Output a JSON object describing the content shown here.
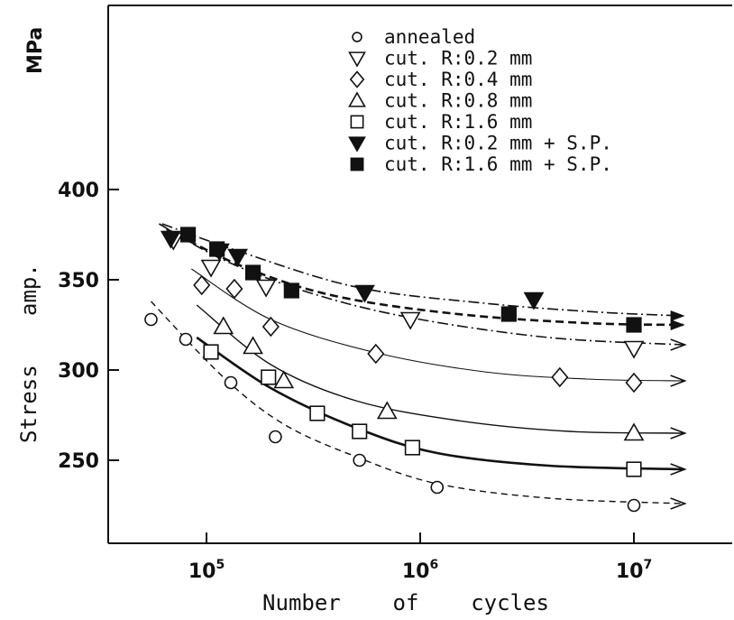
{
  "chart_data": {
    "type": "scatter",
    "title": "",
    "xlabel": "Number    of    cycles",
    "ylabel_text": "Stress",
    "ylabel_amp": "amp.",
    "ylabel_unit": "MPa",
    "x_scale": "log",
    "xlim": [
      30000,
      25000000
    ],
    "ylim": [
      205,
      430
    ],
    "grid": false,
    "legend_placement": "top-right",
    "x_ticks": [
      {
        "value": 100000,
        "base": "10",
        "exp": "5"
      },
      {
        "value": 1000000,
        "base": "10",
        "exp": "6"
      },
      {
        "value": 10000000,
        "base": "10",
        "exp": "7"
      }
    ],
    "y_ticks": [
      {
        "value": 250,
        "label": "250"
      },
      {
        "value": 300,
        "label": "300"
      },
      {
        "value": 350,
        "label": "350"
      },
      {
        "value": 400,
        "label": "400"
      }
    ],
    "series": [
      {
        "name": "annealed",
        "marker": "circle",
        "filled": false,
        "line": "dashed",
        "points": [
          [
            55000,
            328
          ],
          [
            80000,
            317
          ],
          [
            130000,
            293
          ],
          [
            210000,
            263
          ],
          [
            520000,
            250
          ],
          [
            1200000,
            235
          ],
          [
            10000000,
            225
          ]
        ],
        "curve": [
          [
            55000,
            338
          ],
          [
            120000,
            296
          ],
          [
            230000,
            270
          ],
          [
            500000,
            252
          ],
          [
            1200000,
            237
          ],
          [
            4000000,
            229
          ],
          [
            17000000,
            226
          ]
        ]
      },
      {
        "name": "cut. R:0.2 mm",
        "marker": "triangle-down",
        "filled": false,
        "line": "dashdot",
        "points": [
          [
            70000,
            372
          ],
          [
            105000,
            357
          ],
          [
            190000,
            346
          ],
          [
            900000,
            328
          ],
          [
            10000000,
            312
          ]
        ],
        "curve": [
          [
            60000,
            381
          ],
          [
            120000,
            361
          ],
          [
            300000,
            343
          ],
          [
            900000,
            329
          ],
          [
            4000000,
            318
          ],
          [
            17000000,
            314
          ]
        ]
      },
      {
        "name": "cut. R:0.4 mm",
        "marker": "diamond",
        "filled": false,
        "line": "solid-thin",
        "points": [
          [
            95000,
            347
          ],
          [
            135000,
            345
          ],
          [
            200000,
            324
          ],
          [
            620000,
            309
          ],
          [
            4500000,
            296
          ],
          [
            10000000,
            293
          ]
        ],
        "curve": [
          [
            85000,
            356
          ],
          [
            200000,
            328
          ],
          [
            600000,
            310
          ],
          [
            2000000,
            299
          ],
          [
            6000000,
            295
          ],
          [
            17000000,
            294
          ]
        ]
      },
      {
        "name": "cut. R:0.8 mm",
        "marker": "triangle-up",
        "filled": false,
        "line": "solid",
        "points": [
          [
            120000,
            324
          ],
          [
            165000,
            313
          ],
          [
            230000,
            294
          ],
          [
            700000,
            277
          ],
          [
            10000000,
            265
          ]
        ],
        "curve": [
          [
            90000,
            336
          ],
          [
            200000,
            303
          ],
          [
            500000,
            283
          ],
          [
            1500000,
            272
          ],
          [
            5000000,
            266
          ],
          [
            17000000,
            265
          ]
        ]
      },
      {
        "name": "cut. R:1.6 mm",
        "marker": "square",
        "filled": false,
        "line": "solid-thick",
        "points": [
          [
            105000,
            310
          ],
          [
            195000,
            296
          ],
          [
            330000,
            276
          ],
          [
            520000,
            266
          ],
          [
            920000,
            257
          ],
          [
            10000000,
            245
          ]
        ],
        "curve": [
          [
            90000,
            318
          ],
          [
            200000,
            290
          ],
          [
            500000,
            268
          ],
          [
            1200000,
            254
          ],
          [
            4000000,
            247
          ],
          [
            17000000,
            245
          ]
        ]
      },
      {
        "name": "cut. R:0.2 mm + S.P.",
        "marker": "triangle-down",
        "filled": true,
        "line": "dashdot",
        "points": [
          [
            68000,
            373
          ],
          [
            115000,
            366
          ],
          [
            140000,
            363
          ],
          [
            550000,
            343
          ],
          [
            3400000,
            339
          ]
        ],
        "curve": [
          [
            62000,
            381
          ],
          [
            140000,
            366
          ],
          [
            500000,
            346
          ],
          [
            2000000,
            337
          ],
          [
            7000000,
            332
          ],
          [
            17000000,
            330
          ]
        ]
      },
      {
        "name": "cut. R:1.6 mm + S.P.",
        "marker": "square",
        "filled": true,
        "line": "dashed-thick",
        "points": [
          [
            82000,
            375
          ],
          [
            112000,
            367
          ],
          [
            165000,
            354
          ],
          [
            250000,
            344
          ],
          [
            2600000,
            331
          ],
          [
            10000000,
            325
          ]
        ],
        "curve": [
          [
            65000,
            378
          ],
          [
            150000,
            357
          ],
          [
            400000,
            341
          ],
          [
            1500000,
            331
          ],
          [
            6000000,
            326
          ],
          [
            17000000,
            325
          ]
        ]
      }
    ]
  }
}
